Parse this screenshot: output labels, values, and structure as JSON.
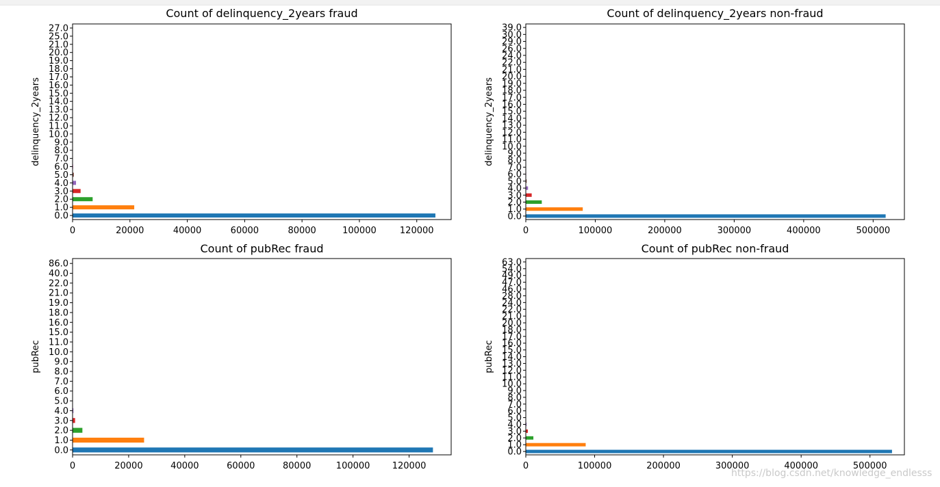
{
  "chart_data": [
    {
      "type": "bar",
      "orientation": "horizontal",
      "title": "Count of delinquency_2years fraud",
      "ylabel": "delinquency_2years",
      "categories": [
        "0.0",
        "1.0",
        "2.0",
        "3.0",
        "4.0",
        "5.0",
        "6.0",
        "7.0",
        "8.0",
        "9.0",
        "10.0",
        "11.0",
        "12.0",
        "13.0",
        "14.0",
        "15.0",
        "16.0",
        "17.0",
        "18.0",
        "19.0",
        "20.0",
        "21.0",
        "25.0",
        "27.0"
      ],
      "values": [
        126500,
        21500,
        7000,
        2800,
        1200,
        450,
        200,
        100,
        60,
        40,
        25,
        18,
        12,
        8,
        6,
        5,
        4,
        3,
        3,
        2,
        2,
        1,
        1,
        1
      ],
      "xticks": [
        0,
        20000,
        40000,
        60000,
        80000,
        100000,
        120000
      ],
      "xlim": [
        0,
        132000
      ],
      "grid": false
    },
    {
      "type": "bar",
      "orientation": "horizontal",
      "title": "Count of delinquency_2years non-fraud",
      "ylabel": "delinquency_2years",
      "categories": [
        "0.0",
        "1.0",
        "2.0",
        "3.0",
        "4.0",
        "5.0",
        "6.0",
        "7.0",
        "8.0",
        "9.0",
        "10.0",
        "11.0",
        "12.0",
        "13.0",
        "14.0",
        "15.0",
        "16.0",
        "17.0",
        "18.0",
        "19.0",
        "20.0",
        "21.0",
        "22.0",
        "24.0",
        "26.0",
        "29.0",
        "30.0",
        "39.0"
      ],
      "values": [
        518000,
        82000,
        23000,
        8500,
        3200,
        1300,
        600,
        300,
        180,
        110,
        70,
        45,
        30,
        20,
        15,
        10,
        8,
        6,
        5,
        4,
        3,
        2,
        2,
        1,
        1,
        1,
        1,
        1
      ],
      "xticks": [
        0,
        100000,
        200000,
        300000,
        400000,
        500000
      ],
      "xlim": [
        0,
        545000
      ],
      "grid": false
    },
    {
      "type": "bar",
      "orientation": "horizontal",
      "title": "Count of pubRec fraud",
      "ylabel": "pubRec",
      "categories": [
        "0.0",
        "1.0",
        "2.0",
        "3.0",
        "4.0",
        "5.0",
        "6.0",
        "7.0",
        "8.0",
        "9.0",
        "10.0",
        "11.0",
        "15.0",
        "16.0",
        "18.0",
        "19.0",
        "21.0",
        "22.0",
        "40.0",
        "86.0"
      ],
      "values": [
        128500,
        25500,
        3500,
        900,
        300,
        120,
        60,
        30,
        15,
        10,
        8,
        6,
        4,
        3,
        2,
        2,
        1,
        1,
        1,
        1
      ],
      "xticks": [
        0,
        20000,
        40000,
        60000,
        80000,
        100000,
        120000
      ],
      "xlim": [
        0,
        135000
      ],
      "grid": false
    },
    {
      "type": "bar",
      "orientation": "horizontal",
      "title": "Count of pubRec non-fraud",
      "ylabel": "pubRec",
      "categories": [
        "0.0",
        "1.0",
        "2.0",
        "3.0",
        "4.0",
        "5.0",
        "6.0",
        "7.0",
        "8.0",
        "9.0",
        "10.0",
        "11.0",
        "12.0",
        "13.0",
        "14.0",
        "15.0",
        "16.0",
        "17.0",
        "18.0",
        "20.0",
        "21.0",
        "22.0",
        "24.0",
        "28.0",
        "46.0",
        "47.0",
        "49.0",
        "54.0",
        "63.0"
      ],
      "values": [
        532000,
        87000,
        11000,
        3000,
        1100,
        450,
        200,
        100,
        60,
        40,
        25,
        18,
        12,
        9,
        7,
        5,
        4,
        3,
        3,
        2,
        2,
        1,
        1,
        1,
        1,
        1,
        1,
        1,
        1
      ],
      "xticks": [
        0,
        100000,
        200000,
        300000,
        400000,
        500000
      ],
      "xlim": [
        0,
        550000
      ],
      "grid": false
    }
  ],
  "colors": [
    "#1f77b4",
    "#ff7f0e",
    "#2ca02c",
    "#d62728",
    "#9467bd",
    "#8c564b",
    "#e377c2",
    "#7f7f7f",
    "#bcbd22",
    "#17becf"
  ],
  "watermark": "https://blog.csdn.net/knowledge_endlesss"
}
